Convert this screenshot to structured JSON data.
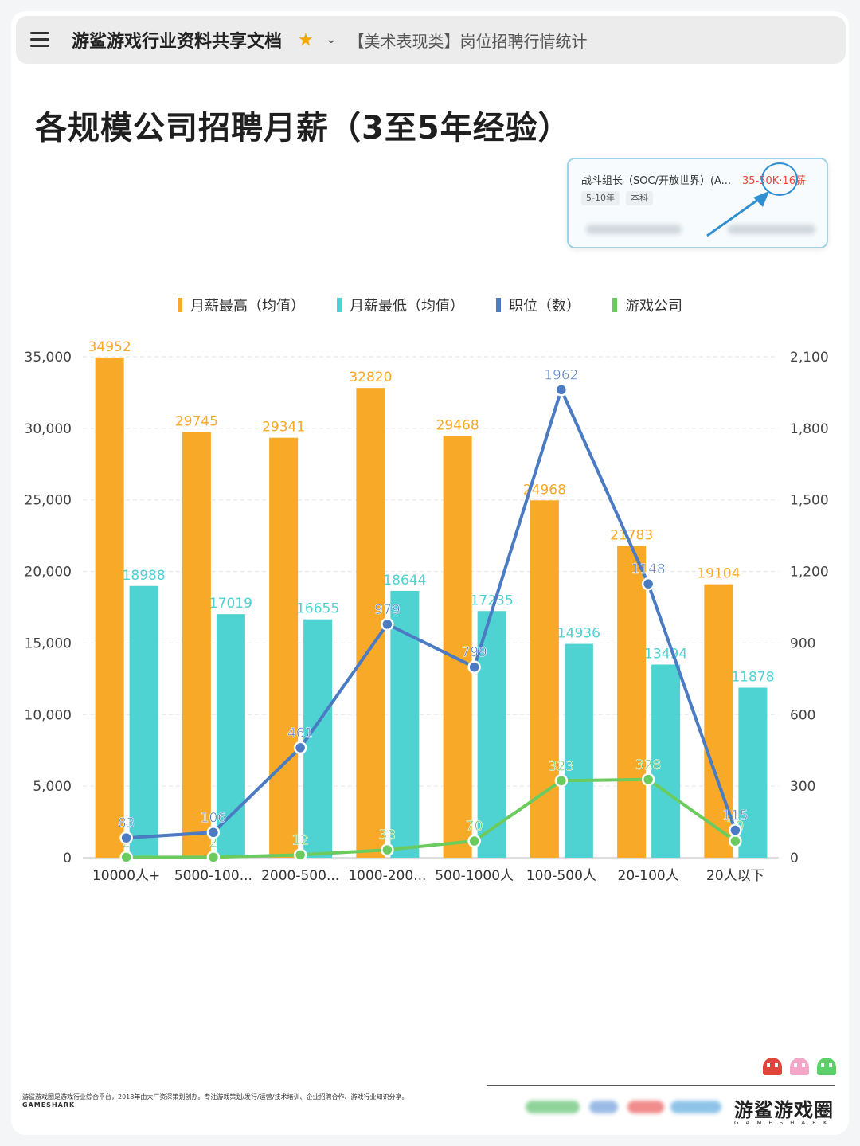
{
  "topbar": {
    "doc_title": "游鲨游戏行业资料共享文档",
    "breadcrumb": "【美术表现类】岗位招聘行情统计"
  },
  "page_title": "各规模公司招聘月薪（3至5年经验）",
  "job_card": {
    "title": "战斗组长（SOC/开放世界）(A...",
    "salary": "35-50K·16薪",
    "tags": [
      "5-10年",
      "本科"
    ]
  },
  "colors": {
    "salary_high": "#f8a928",
    "salary_low": "#4fd2d2",
    "positions": "#4a7bc3",
    "companies": "#6ccb5f"
  },
  "chart_data": {
    "type": "bar",
    "categories": [
      "10000人+",
      "5000-100...",
      "2000-500...",
      "1000-200...",
      "500-1000人",
      "100-500人",
      "20-100人",
      "20人以下"
    ],
    "series": [
      {
        "name": "月薪最高（均值）",
        "type": "bar",
        "axis": "left",
        "values": [
          34952,
          29745,
          29341,
          32820,
          29468,
          24968,
          21783,
          19104
        ]
      },
      {
        "name": "月薪最低（均值）",
        "type": "bar",
        "axis": "left",
        "values": [
          18988,
          17019,
          16655,
          18644,
          17235,
          14936,
          13494,
          11878
        ]
      },
      {
        "name": "职位（数）",
        "type": "line",
        "axis": "right",
        "values": [
          83,
          106,
          461,
          979,
          799,
          1962,
          1148,
          115
        ]
      },
      {
        "name": "游戏公司",
        "type": "line",
        "axis": "right",
        "values": [
          2,
          2,
          12,
          33,
          70,
          323,
          328,
          70
        ]
      }
    ],
    "left_axis": {
      "range": [
        0,
        35000
      ],
      "ticks": [
        "0",
        "5,000",
        "10,000",
        "15,000",
        "20,000",
        "25,000",
        "30,000",
        "35,000"
      ]
    },
    "right_axis": {
      "range": [
        0,
        2100
      ],
      "ticks": [
        "0",
        "300",
        "600",
        "900",
        "1,200",
        "1,500",
        "1,800",
        "2,100"
      ]
    },
    "grid": true,
    "legend_position": "top-center"
  },
  "footer": {
    "description": "游鲨游戏圈是游戏行业综合平台，2018年由大厂资深策划创办。专注游戏策划/发行/运营/技术培训、企业招聘合作、游戏行业知识分享。",
    "brand_en": "GAMESHARK",
    "logo_text": "游鲨游戏圈",
    "logo_sub": "GAMESHARK"
  }
}
